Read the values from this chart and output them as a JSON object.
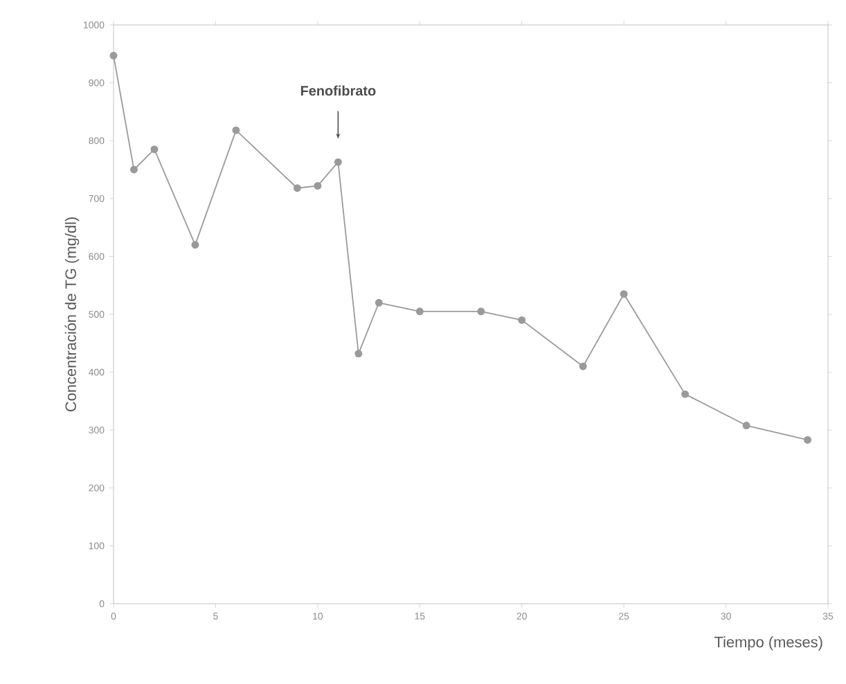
{
  "chart_data": {
    "type": "line",
    "xlabel": "Tiempo (meses)",
    "ylabel": "Concentración de TG (mg/dl)",
    "x": [
      0,
      1,
      2,
      4,
      6,
      9,
      10,
      11,
      12,
      13,
      15,
      18,
      20,
      23,
      25,
      28,
      31,
      34
    ],
    "series": [
      {
        "color": "#9a9a9a",
        "values": [
          947,
          750,
          785,
          620,
          818,
          718,
          722,
          763,
          432,
          520,
          505,
          505,
          490,
          410,
          535,
          362,
          308,
          283
        ]
      }
    ],
    "xlim": [
      0,
      35
    ],
    "xticks": [
      0,
      5,
      10,
      15,
      20,
      25,
      30,
      35
    ],
    "ylim": [
      0,
      1000
    ],
    "yticks": [
      0,
      100,
      200,
      300,
      400,
      500,
      600,
      700,
      800,
      900,
      1000
    ],
    "marker": "circle",
    "line_style": "solid",
    "grid": false,
    "annotations": [
      "Fenofibrato"
    ]
  }
}
